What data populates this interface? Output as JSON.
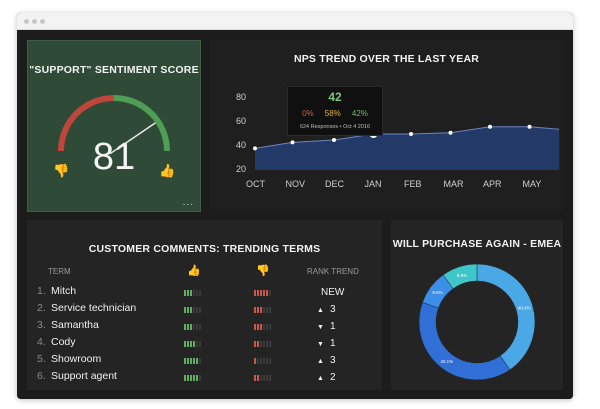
{
  "sentiment": {
    "title": "\"SUPPORT\" SENTIMENT SCORE",
    "score": "81",
    "score_value": 81,
    "more": "..."
  },
  "nps": {
    "title": "NPS TREND OVER THE LAST YEAR",
    "y_ticks": [
      "80",
      "60",
      "40",
      "20"
    ],
    "x_labels": [
      "OCT",
      "NOV",
      "DEC",
      "JAN",
      "FEB",
      "MAR",
      "APR",
      "MAY"
    ],
    "tooltip": {
      "value": "42",
      "detractors": "0%",
      "passives": "58%",
      "promoters": "42%",
      "footer": "624 Responses  •  Oct 4 2016"
    }
  },
  "comments": {
    "title": "CUSTOMER COMMENTS: TRENDING TERMS",
    "col_term": "TERM",
    "col_rank": "RANK TREND",
    "rows": [
      {
        "rank": "1.",
        "term": "Mitch",
        "pos": 3,
        "neg": 5,
        "trend": "NEW",
        "dir": ""
      },
      {
        "rank": "2.",
        "term": "Service technician",
        "pos": 3,
        "neg": 3,
        "trend": "3",
        "dir": "▲"
      },
      {
        "rank": "3.",
        "term": "Samantha",
        "pos": 3,
        "neg": 3,
        "trend": "1",
        "dir": "▼"
      },
      {
        "rank": "4.",
        "term": "Cody",
        "pos": 4,
        "neg": 2,
        "trend": "1",
        "dir": "▼"
      },
      {
        "rank": "5.",
        "term": "Showroom",
        "pos": 5,
        "neg": 1,
        "trend": "3",
        "dir": "▲"
      },
      {
        "rank": "6.",
        "term": "Support agent",
        "pos": 5,
        "neg": 2,
        "trend": "2",
        "dir": "▲"
      }
    ]
  },
  "purchase": {
    "title": "WILL PURCHASE AGAIN - EMEA"
  },
  "chart_data": [
    {
      "type": "line",
      "title": "NPS TREND OVER THE LAST YEAR",
      "categories": [
        "OCT",
        "NOV",
        "DEC",
        "JAN",
        "FEB",
        "MAR",
        "APR",
        "MAY"
      ],
      "x": [
        0,
        0.95,
        2.0,
        3.0,
        3.95,
        4.95,
        5.95,
        6.95,
        7.7
      ],
      "values": [
        38,
        43,
        45,
        50,
        50,
        51,
        56,
        56,
        54
      ],
      "ylim": [
        20,
        80
      ],
      "y_ticks": [
        80,
        60,
        40,
        20
      ],
      "xlabel": "",
      "ylabel": ""
    },
    {
      "type": "pie",
      "title": "WILL PURCHASE AGAIN - EMEA",
      "labels": [
        "40.4%",
        "40.1%",
        "9.6%",
        "9.9%"
      ],
      "values": [
        40.4,
        40.1,
        9.6,
        9.9
      ],
      "colors": [
        "#4aa8e6",
        "#2f6fd6",
        "#3b8fe8",
        "#3fc6c9"
      ]
    }
  ],
  "colors": {
    "gauge_red": "#c0453b",
    "gauge_green": "#4e9e55",
    "positive_bar": "#5fae63",
    "negative_bar": "#c9574a",
    "line": "#ffffff",
    "area": "#233a68"
  }
}
